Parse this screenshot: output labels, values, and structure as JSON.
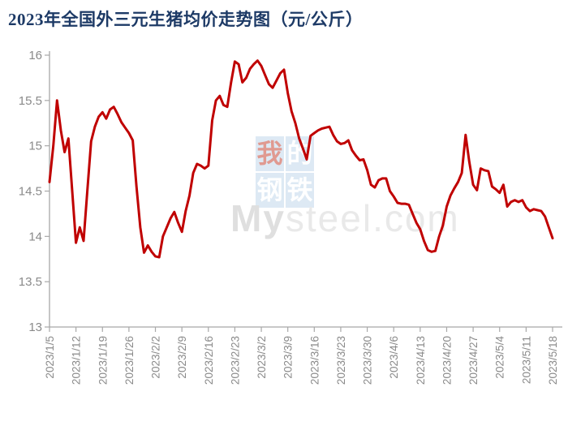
{
  "title": "2023年全国外三元生猪均价走势图（元/公斤）",
  "watermark": {
    "chars": [
      "我",
      "的",
      "钢",
      "铁"
    ],
    "brand_bold": "My",
    "brand_rest": "steel.com"
  },
  "colors": {
    "line": "#c00000",
    "title": "#1d3a66",
    "axis": "#a8a8a8",
    "tick_label": "#8a8a8a",
    "watermark_box": "#dde9f4",
    "watermark_char": "#ffffff",
    "watermark_char_red": "#e09a91",
    "watermark_brand": "#e9e9e9"
  },
  "chart_data": {
    "type": "line",
    "title": "2023年全国外三元生猪均价走势图（元/公斤）",
    "unit": "元/公斤",
    "grid": false,
    "legend": "none",
    "ylim": [
      13,
      16
    ],
    "y_ticks": [
      13,
      13.5,
      14,
      14.5,
      15,
      15.5,
      16
    ],
    "x_tick_interval": 7,
    "x_tick_labels": [
      "2023/1/5",
      "2023/1/12",
      "2023/1/19",
      "2023/1/26",
      "2023/2/2",
      "2023/2/9",
      "2023/2/16",
      "2023/2/23",
      "2023/3/2",
      "2023/3/9",
      "2023/3/16",
      "2023/3/23",
      "2023/3/30",
      "2023/4/6",
      "2023/4/13",
      "2023/4/20",
      "2023/4/27",
      "2023/5/4",
      "2023/5/11",
      "2023/5/18"
    ],
    "x": [
      "2023/1/5",
      "2023/1/6",
      "2023/1/7",
      "2023/1/8",
      "2023/1/9",
      "2023/1/10",
      "2023/1/11",
      "2023/1/12",
      "2023/1/13",
      "2023/1/14",
      "2023/1/15",
      "2023/1/16",
      "2023/1/17",
      "2023/1/18",
      "2023/1/19",
      "2023/1/20",
      "2023/1/21",
      "2023/1/22",
      "2023/1/23",
      "2023/1/24",
      "2023/1/25",
      "2023/1/26",
      "2023/1/27",
      "2023/1/28",
      "2023/1/29",
      "2023/1/30",
      "2023/1/31",
      "2023/2/1",
      "2023/2/2",
      "2023/2/3",
      "2023/2/4",
      "2023/2/5",
      "2023/2/6",
      "2023/2/7",
      "2023/2/8",
      "2023/2/9",
      "2023/2/10",
      "2023/2/11",
      "2023/2/12",
      "2023/2/13",
      "2023/2/14",
      "2023/2/15",
      "2023/2/16",
      "2023/2/17",
      "2023/2/18",
      "2023/2/19",
      "2023/2/20",
      "2023/2/21",
      "2023/2/22",
      "2023/2/23",
      "2023/2/24",
      "2023/2/25",
      "2023/2/26",
      "2023/2/27",
      "2023/2/28",
      "2023/3/1",
      "2023/3/2",
      "2023/3/3",
      "2023/3/4",
      "2023/3/5",
      "2023/3/6",
      "2023/3/7",
      "2023/3/8",
      "2023/3/9",
      "2023/3/10",
      "2023/3/11",
      "2023/3/12",
      "2023/3/13",
      "2023/3/14",
      "2023/3/15",
      "2023/3/16",
      "2023/3/17",
      "2023/3/18",
      "2023/3/19",
      "2023/3/20",
      "2023/3/21",
      "2023/3/22",
      "2023/3/23",
      "2023/3/24",
      "2023/3/25",
      "2023/3/26",
      "2023/3/27",
      "2023/3/28",
      "2023/3/29",
      "2023/3/30",
      "2023/3/31",
      "2023/4/1",
      "2023/4/2",
      "2023/4/3",
      "2023/4/4",
      "2023/4/5",
      "2023/4/6",
      "2023/4/7",
      "2023/4/8",
      "2023/4/9",
      "2023/4/10",
      "2023/4/11",
      "2023/4/12",
      "2023/4/13",
      "2023/4/14",
      "2023/4/15",
      "2023/4/16",
      "2023/4/17",
      "2023/4/18",
      "2023/4/19",
      "2023/4/20",
      "2023/4/21",
      "2023/4/22",
      "2023/4/23",
      "2023/4/24",
      "2023/4/25",
      "2023/4/26",
      "2023/4/27",
      "2023/4/28",
      "2023/4/29",
      "2023/4/30",
      "2023/5/1",
      "2023/5/2",
      "2023/5/3",
      "2023/5/4",
      "2023/5/5",
      "2023/5/6",
      "2023/5/7",
      "2023/5/8",
      "2023/5/9",
      "2023/5/10",
      "2023/5/11",
      "2023/5/12",
      "2023/5/13",
      "2023/5/14",
      "2023/5/15",
      "2023/5/16",
      "2023/5/17",
      "2023/5/18"
    ],
    "series": [
      {
        "name": "全国外三元生猪均价",
        "color": "#c00000",
        "values": [
          14.6,
          15.0,
          15.5,
          15.17,
          14.93,
          15.08,
          14.5,
          13.93,
          14.1,
          13.95,
          14.5,
          15.05,
          15.21,
          15.32,
          15.37,
          15.3,
          15.4,
          15.43,
          15.35,
          15.26,
          15.2,
          15.14,
          15.06,
          14.55,
          14.1,
          13.82,
          13.9,
          13.83,
          13.78,
          13.77,
          14.0,
          14.1,
          14.2,
          14.27,
          14.15,
          14.05,
          14.28,
          14.45,
          14.7,
          14.8,
          14.78,
          14.75,
          14.78,
          15.28,
          15.5,
          15.55,
          15.45,
          15.43,
          15.7,
          15.93,
          15.9,
          15.7,
          15.75,
          15.85,
          15.9,
          15.94,
          15.88,
          15.78,
          15.68,
          15.64,
          15.72,
          15.8,
          15.84,
          15.58,
          15.38,
          15.25,
          15.08,
          14.97,
          14.85,
          15.11,
          15.14,
          15.17,
          15.19,
          15.2,
          15.21,
          15.12,
          15.05,
          15.02,
          15.03,
          15.06,
          14.95,
          14.89,
          14.84,
          14.85,
          14.73,
          14.57,
          14.54,
          14.62,
          14.64,
          14.64,
          14.5,
          14.44,
          14.37,
          14.36,
          14.36,
          14.35,
          14.25,
          14.15,
          14.08,
          13.95,
          13.85,
          13.83,
          13.84,
          14.0,
          14.12,
          14.33,
          14.45,
          14.53,
          14.6,
          14.7,
          15.12,
          14.82,
          14.57,
          14.51,
          14.75,
          14.73,
          14.72,
          14.55,
          14.52,
          14.48,
          14.57,
          14.33,
          14.38,
          14.4,
          14.38,
          14.4,
          14.32,
          14.28,
          14.3,
          14.29,
          14.28,
          14.22,
          14.1,
          13.98
        ]
      }
    ]
  }
}
